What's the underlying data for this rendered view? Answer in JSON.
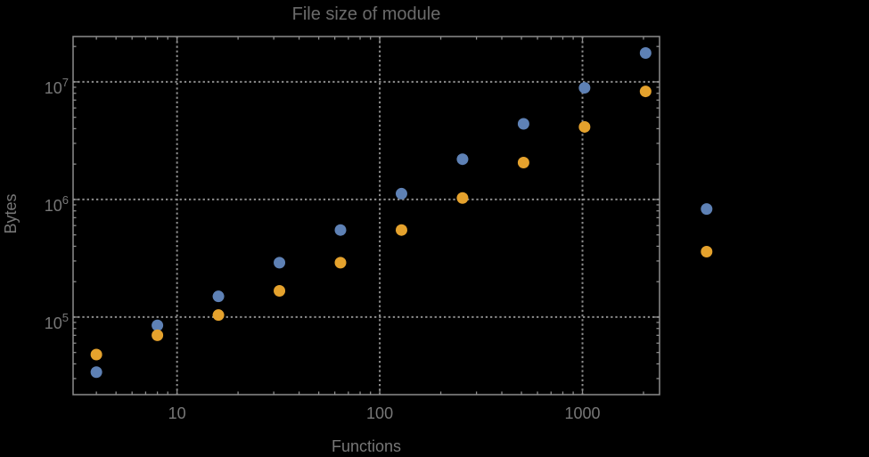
{
  "colors": {
    "background": "#000000",
    "frame": "#8c8c8c",
    "grid": "#8c8c8c",
    "title_text": "#6b6b6b",
    "axis_text": "#777777",
    "series_blue": "#5e81b5",
    "series_orange": "#e5a22d"
  },
  "chart_data": {
    "type": "scatter",
    "title": "File size of module",
    "xlabel": "Functions",
    "ylabel": "Bytes",
    "x_scale": "log",
    "y_scale": "log",
    "grid": "dotted, at major decade ticks only",
    "legend": "none",
    "marker_diameter_px": 13,
    "xlim": [
      3.07,
      2400
    ],
    "ylim": [
      21900,
      24300000
    ],
    "x_ticks": [
      {
        "value": 10,
        "label": "10"
      },
      {
        "value": 100,
        "label": "100"
      },
      {
        "value": 1000,
        "label": "1000"
      }
    ],
    "y_ticks": [
      {
        "value": 100000,
        "base": "10",
        "exp": "5"
      },
      {
        "value": 1000000,
        "base": "10",
        "exp": "6"
      },
      {
        "value": 10000000,
        "base": "10",
        "exp": "7"
      }
    ],
    "x": [
      4,
      8,
      16,
      32,
      64,
      128,
      256,
      512,
      1024,
      2048,
      4096
    ],
    "series": [
      {
        "name": "blue",
        "color": "#5e81b5",
        "values": [
          34000,
          85000,
          150000,
          290000,
          550000,
          1120000,
          2200000,
          4400000,
          8900000,
          17600000,
          830000
        ]
      },
      {
        "name": "orange",
        "color": "#e5a22d",
        "values": [
          48000,
          70000,
          104000,
          167000,
          290000,
          550000,
          1030000,
          2060000,
          4140000,
          8300000,
          360000
        ]
      }
    ]
  }
}
